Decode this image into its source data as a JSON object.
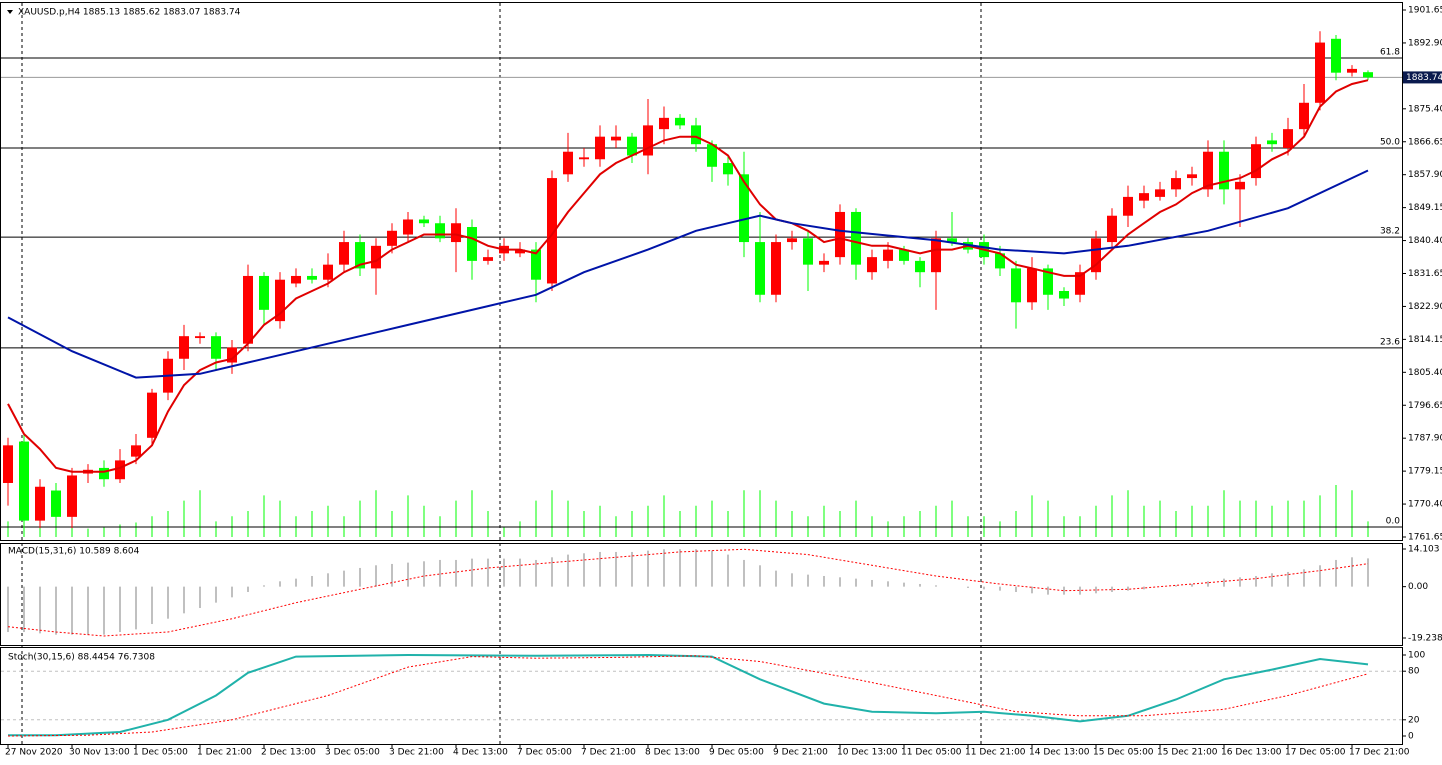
{
  "chart_data": [
    {
      "type": "candlestick",
      "title": "XAUUSD.p,H4  1885.13 1885.62 1883.07 1883.74",
      "categories": [
        "27 Nov 2020",
        null,
        null,
        null,
        "30 Nov 13:00",
        null,
        null,
        null,
        "1 Dec 05:00",
        null,
        null,
        null,
        "1 Dec 21:00",
        null,
        null,
        null,
        "2 Dec 13:00",
        null,
        null,
        null,
        "3 Dec 05:00",
        null,
        null,
        null,
        "3 Dec 21:00",
        null,
        null,
        null,
        "4 Dec 13:00",
        null,
        null,
        null,
        "7 Dec 05:00",
        null,
        null,
        null,
        "7 Dec 21:00",
        null,
        null,
        null,
        "8 Dec 13:00",
        null,
        null,
        null,
        "9 Dec 05:00",
        null,
        null,
        null,
        "9 Dec 21:00",
        null,
        null,
        null,
        "10 Dec 13:00",
        null,
        null,
        null,
        "11 Dec 05:00",
        null,
        null,
        null,
        "11 Dec 21:00",
        null,
        null,
        null,
        "14 Dec 13:00",
        null,
        null,
        null,
        "15 Dec 05:00",
        null,
        null,
        null,
        "15 Dec 21:00",
        null,
        null,
        null,
        "16 Dec 13:00",
        null,
        null,
        null,
        "17 Dec 05:00",
        null,
        null,
        null,
        "17 Dec 21:00",
        null
      ],
      "open": [
        1776,
        1787,
        1766,
        1774,
        1767,
        1778.5,
        1780,
        1777,
        1783,
        1788,
        1800,
        1809,
        1814.5,
        1815,
        1808,
        1813,
        1831,
        1819,
        1829,
        1831,
        1830,
        1834,
        1840,
        1833,
        1839,
        1842,
        1846,
        1845,
        1840,
        1844,
        1835,
        1837,
        1837,
        1838,
        1829,
        1858,
        1862,
        1862,
        1867,
        1868,
        1863,
        1870,
        1873,
        1871,
        1866,
        1861,
        1858,
        1840,
        1826,
        1840,
        1841,
        1834,
        1836,
        1848,
        1832,
        1835,
        1838,
        1835,
        1832,
        1841,
        1840,
        1840,
        1837,
        1833,
        1824,
        1833,
        1827,
        1826,
        1832,
        1840,
        1847,
        1851,
        1852,
        1854,
        1857,
        1854,
        1864,
        1854,
        1857,
        1867,
        1865,
        1870,
        1877,
        1894,
        1885,
        1885.13
      ],
      "high": [
        1788,
        1789,
        1777,
        1776,
        1780,
        1781,
        1782,
        1785,
        1789,
        1801,
        1811,
        1818,
        1816,
        1816,
        1814,
        1834,
        1832,
        1832,
        1833,
        1833,
        1837,
        1843,
        1842,
        1841,
        1845,
        1848,
        1847,
        1847,
        1849,
        1846,
        1838,
        1841,
        1840,
        1840,
        1859,
        1869,
        1865,
        1871,
        1871,
        1869,
        1878,
        1876,
        1874,
        1873,
        1867,
        1863,
        1864,
        1848,
        1842,
        1843,
        1843,
        1837,
        1850,
        1849,
        1838,
        1840,
        1839,
        1836,
        1843,
        1848,
        1841,
        1842,
        1839,
        1835,
        1836,
        1834,
        1828,
        1834,
        1843,
        1849,
        1855,
        1855,
        1856,
        1859,
        1860,
        1867,
        1867,
        1858,
        1868,
        1869,
        1873,
        1882,
        1896,
        1895,
        1887,
        1885.62
      ],
      "low": [
        1770,
        1764,
        1764,
        1765,
        1764,
        1776,
        1775,
        1776,
        1781,
        1786,
        1798,
        1806,
        1813,
        1806,
        1805,
        1811,
        1818,
        1817,
        1828,
        1829,
        1828,
        1832,
        1831,
        1826,
        1837,
        1840,
        1844,
        1840,
        1832,
        1830,
        1834,
        1835,
        1836,
        1824,
        1827,
        1856,
        1860,
        1860,
        1865,
        1861,
        1858,
        1866,
        1870,
        1864,
        1856,
        1855,
        1836,
        1824,
        1824,
        1838,
        1827,
        1832,
        1834,
        1830,
        1830,
        1833,
        1834,
        1828,
        1822,
        1839,
        1837,
        1834,
        1831,
        1817,
        1822,
        1822,
        1823,
        1824,
        1830,
        1838,
        1844,
        1849,
        1851,
        1852,
        1855,
        1852,
        1850,
        1844,
        1855,
        1864,
        1863,
        1868,
        1875,
        1883,
        1884,
        1883.07
      ],
      "close": [
        1786,
        1766,
        1775,
        1767,
        1778,
        1779.5,
        1777,
        1782,
        1786,
        1800,
        1809,
        1815,
        1815,
        1809,
        1812,
        1831,
        1822,
        1830,
        1831,
        1830,
        1834,
        1840,
        1833,
        1839,
        1843,
        1846,
        1845,
        1841,
        1845,
        1835,
        1836,
        1839,
        1838,
        1830,
        1857,
        1864,
        1862.5,
        1868,
        1868,
        1863,
        1871,
        1873,
        1871,
        1866,
        1860,
        1858,
        1840,
        1826,
        1840,
        1841,
        1834,
        1835,
        1848,
        1834,
        1836,
        1838,
        1835,
        1832,
        1841,
        1840,
        1838,
        1836,
        1833,
        1824,
        1833,
        1826,
        1825,
        1832,
        1841,
        1847,
        1852,
        1853,
        1854,
        1857,
        1858,
        1864,
        1854,
        1856,
        1866,
        1866,
        1870,
        1877,
        1893,
        1885,
        1886,
        1883.74
      ],
      "up_color": "#ff0000",
      "down_color": "#00ff00",
      "volume": {
        "color": "#00ff00",
        "values": [
          15,
          45,
          20,
          25,
          15,
          8,
          10,
          12,
          14,
          20,
          25,
          35,
          45,
          15,
          20,
          25,
          40,
          35,
          20,
          25,
          30,
          20,
          35,
          45,
          25,
          40,
          30,
          20,
          35,
          45,
          25,
          10,
          15,
          35,
          45,
          35,
          25,
          30,
          20,
          25,
          30,
          40,
          25,
          30,
          35,
          25,
          45,
          45,
          35,
          25,
          20,
          30,
          25,
          35,
          20,
          15,
          20,
          25,
          30,
          35,
          20,
          20,
          15,
          25,
          40,
          35,
          20,
          20,
          30,
          40,
          45,
          30,
          35,
          25,
          30,
          30,
          45,
          35,
          35,
          30,
          35,
          35,
          40,
          50,
          45,
          15
        ]
      },
      "series": [
        {
          "color": "#e00000",
          "values": [
            1797,
            1789,
            1785,
            1780,
            1779,
            1779,
            1779,
            1780,
            1782,
            1786,
            1795,
            1802,
            1806,
            1808,
            1809,
            1813,
            1818,
            1821,
            1825,
            1827,
            1829,
            1832,
            1834,
            1835,
            1838,
            1840,
            1842,
            1842,
            1842,
            1841,
            1839,
            1838,
            1838,
            1837,
            1842,
            1848,
            1853,
            1858,
            1861,
            1863,
            1865,
            1867,
            1868,
            1868,
            1866,
            1863,
            1856,
            1850,
            1846,
            1845,
            1843,
            1840,
            1841,
            1840,
            1839,
            1839,
            1838,
            1837,
            1838,
            1838,
            1839,
            1838,
            1837,
            1834,
            1833,
            1832,
            1831,
            1831,
            1834,
            1838,
            1842,
            1845,
            1848,
            1850,
            1853,
            1855,
            1856,
            1857,
            1859,
            1862,
            1864,
            1868,
            1876,
            1880,
            1882,
            1883
          ]
        },
        {
          "color": "#0014a8",
          "x": [
            0,
            4,
            8,
            12,
            15,
            20,
            25,
            30,
            33,
            36,
            40,
            43,
            45,
            47,
            49,
            52,
            58,
            62,
            66,
            70,
            75,
            80,
            85
          ],
          "values": [
            1820,
            1811,
            1804,
            1805,
            1808,
            1813,
            1818,
            1823,
            1826,
            1832,
            1838,
            1843,
            1845,
            1847,
            1845,
            1843,
            1840.5,
            1838,
            1837,
            1839,
            1843,
            1849,
            1859
          ]
        }
      ],
      "levels": [
        {
          "value": 1888.9,
          "label": "61.8"
        },
        {
          "value": 1865,
          "label": "50.0"
        },
        {
          "value": 1841.3,
          "label": "38.2"
        },
        {
          "value": 1811.9,
          "label": "23.6"
        },
        {
          "value": 1764.3,
          "label": "0.0"
        }
      ],
      "current_price": {
        "value": 1883.74,
        "label": "1883.74"
      },
      "ylim": [
        1761.65,
        1901.65
      ],
      "yticks": [
        1901.65,
        {
          "value": 1892.9,
          "label": "1892.90"
        },
        {
          "value": 1875.4,
          "label": "1875.40"
        },
        1866.65,
        {
          "value": 1857.9,
          "label": "1857.90"
        },
        1849.15,
        {
          "value": 1840.4,
          "label": "1840.40"
        },
        1831.65,
        {
          "value": 1822.9,
          "label": "1822.90"
        },
        1814.15,
        {
          "value": 1805.4,
          "label": "1805.40"
        },
        1796.65,
        {
          "value": 1787.9,
          "label": "1787.90"
        },
        1779.15,
        {
          "value": 1770.4,
          "label": "1770.40"
        },
        1761.65
      ]
    },
    {
      "type": "macd",
      "title": "MACD(15,31,6) 10.589 8.604",
      "histogram": {
        "color": "#c0c0c0",
        "values": [
          -17,
          -17,
          -17.5,
          -18,
          -18,
          -18,
          -18,
          -17,
          -16,
          -14,
          -12,
          -10,
          -8,
          -6,
          -4,
          -2,
          0.5,
          2,
          3,
          4,
          5,
          6,
          7,
          8,
          8.5,
          9,
          9.5,
          10,
          10,
          10.5,
          10.5,
          10.5,
          10.5,
          10,
          11,
          12,
          12.5,
          13,
          13,
          13,
          13.5,
          14,
          14,
          14,
          13.5,
          12,
          10,
          8,
          6,
          5,
          4.5,
          4,
          3.5,
          3,
          2.5,
          2,
          1.5,
          1,
          0.5,
          0,
          -0.5,
          -1,
          -1.5,
          -2,
          -2.5,
          -3,
          -3,
          -3,
          -2.5,
          -2,
          -1.5,
          -1,
          0,
          0.5,
          1,
          2,
          3,
          3.5,
          4,
          5,
          5.5,
          6.5,
          8,
          10,
          11,
          10.589
        ]
      },
      "series": [
        {
          "color": "#ff0000",
          "style": "dotted",
          "x": [
            0,
            3,
            6,
            10,
            14,
            18,
            22,
            26,
            30,
            34,
            38,
            42,
            46,
            50,
            54,
            58,
            62,
            66,
            70,
            74,
            78,
            82,
            85
          ],
          "values": [
            -15,
            -17,
            -18.5,
            -17,
            -12,
            -6,
            -1,
            4,
            7,
            9,
            11,
            13,
            14,
            12,
            8,
            4,
            1,
            -1.5,
            -1,
            1,
            3,
            6,
            8.604
          ]
        }
      ],
      "ylim": [
        -19.238,
        14.103
      ],
      "yticks": [
        14.103,
        {
          "value": 0,
          "label": "0.00"
        },
        -19.238
      ]
    },
    {
      "type": "stochastic",
      "title": "Stoch(30,15,6) 88.4454 76.7308",
      "series": [
        {
          "color": "#20b2aa",
          "x": [
            0,
            3,
            7,
            10,
            13,
            15,
            18,
            25,
            33,
            40,
            44,
            47,
            51,
            54,
            58,
            61,
            64,
            67,
            70,
            73,
            76,
            79,
            82,
            85
          ],
          "values": [
            1,
            1,
            5,
            20,
            50,
            78,
            98,
            100,
            99,
            100,
            98,
            70,
            40,
            30,
            28,
            30,
            25,
            18,
            25,
            45,
            70,
            82,
            95,
            88.4454
          ]
        },
        {
          "color": "#ff0000",
          "style": "dotted",
          "x": [
            0,
            5,
            9,
            14,
            20,
            25,
            29,
            33,
            38,
            43,
            47,
            53,
            58,
            63,
            67,
            71,
            76,
            80,
            85
          ],
          "values": [
            0,
            1,
            5,
            20,
            50,
            85,
            98,
            96,
            97,
            99,
            92,
            70,
            50,
            30,
            25,
            25,
            33,
            50,
            76.7308
          ]
        }
      ],
      "ylim": [
        0,
        100
      ],
      "yticks": [
        100,
        80,
        20,
        0
      ]
    }
  ]
}
